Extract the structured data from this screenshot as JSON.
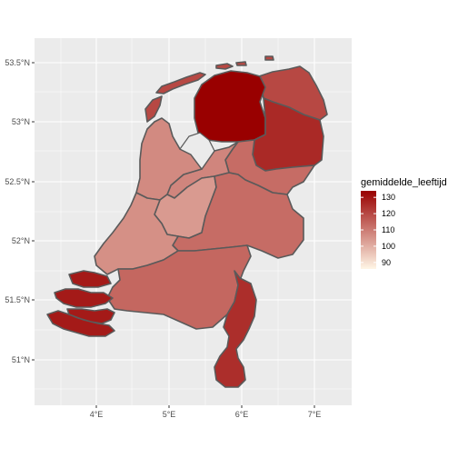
{
  "chart_data": {
    "type": "choropleth",
    "title": "",
    "xlabel": "",
    "ylabel": "",
    "x_ticks": [
      "4°E",
      "5°E",
      "6°E",
      "7°E"
    ],
    "y_ticks": [
      "53.5°N",
      "53°N",
      "52.5°N",
      "52°N",
      "51.5°N",
      "51°N"
    ],
    "legend": {
      "title": "gemiddelde_leeftijd",
      "ticks": [
        130,
        120,
        110,
        100,
        90
      ],
      "range": [
        86,
        134
      ],
      "low_color": "#fff6e6",
      "high_color": "#990000"
    },
    "regions": [
      {
        "id": "groningen",
        "value": 134
      },
      {
        "id": "friesland",
        "value": 120
      },
      {
        "id": "drenthe",
        "value": 126
      },
      {
        "id": "noord-holland",
        "value": 107
      },
      {
        "id": "flevoland",
        "value": 108
      },
      {
        "id": "overijssel",
        "value": 113
      },
      {
        "id": "gelderland",
        "value": 113
      },
      {
        "id": "utrecht",
        "value": 104
      },
      {
        "id": "zuid-holland",
        "value": 106
      },
      {
        "id": "zeeland",
        "value": 129
      },
      {
        "id": "noord-brabant",
        "value": 114
      },
      {
        "id": "limburg",
        "value": 125
      }
    ]
  }
}
